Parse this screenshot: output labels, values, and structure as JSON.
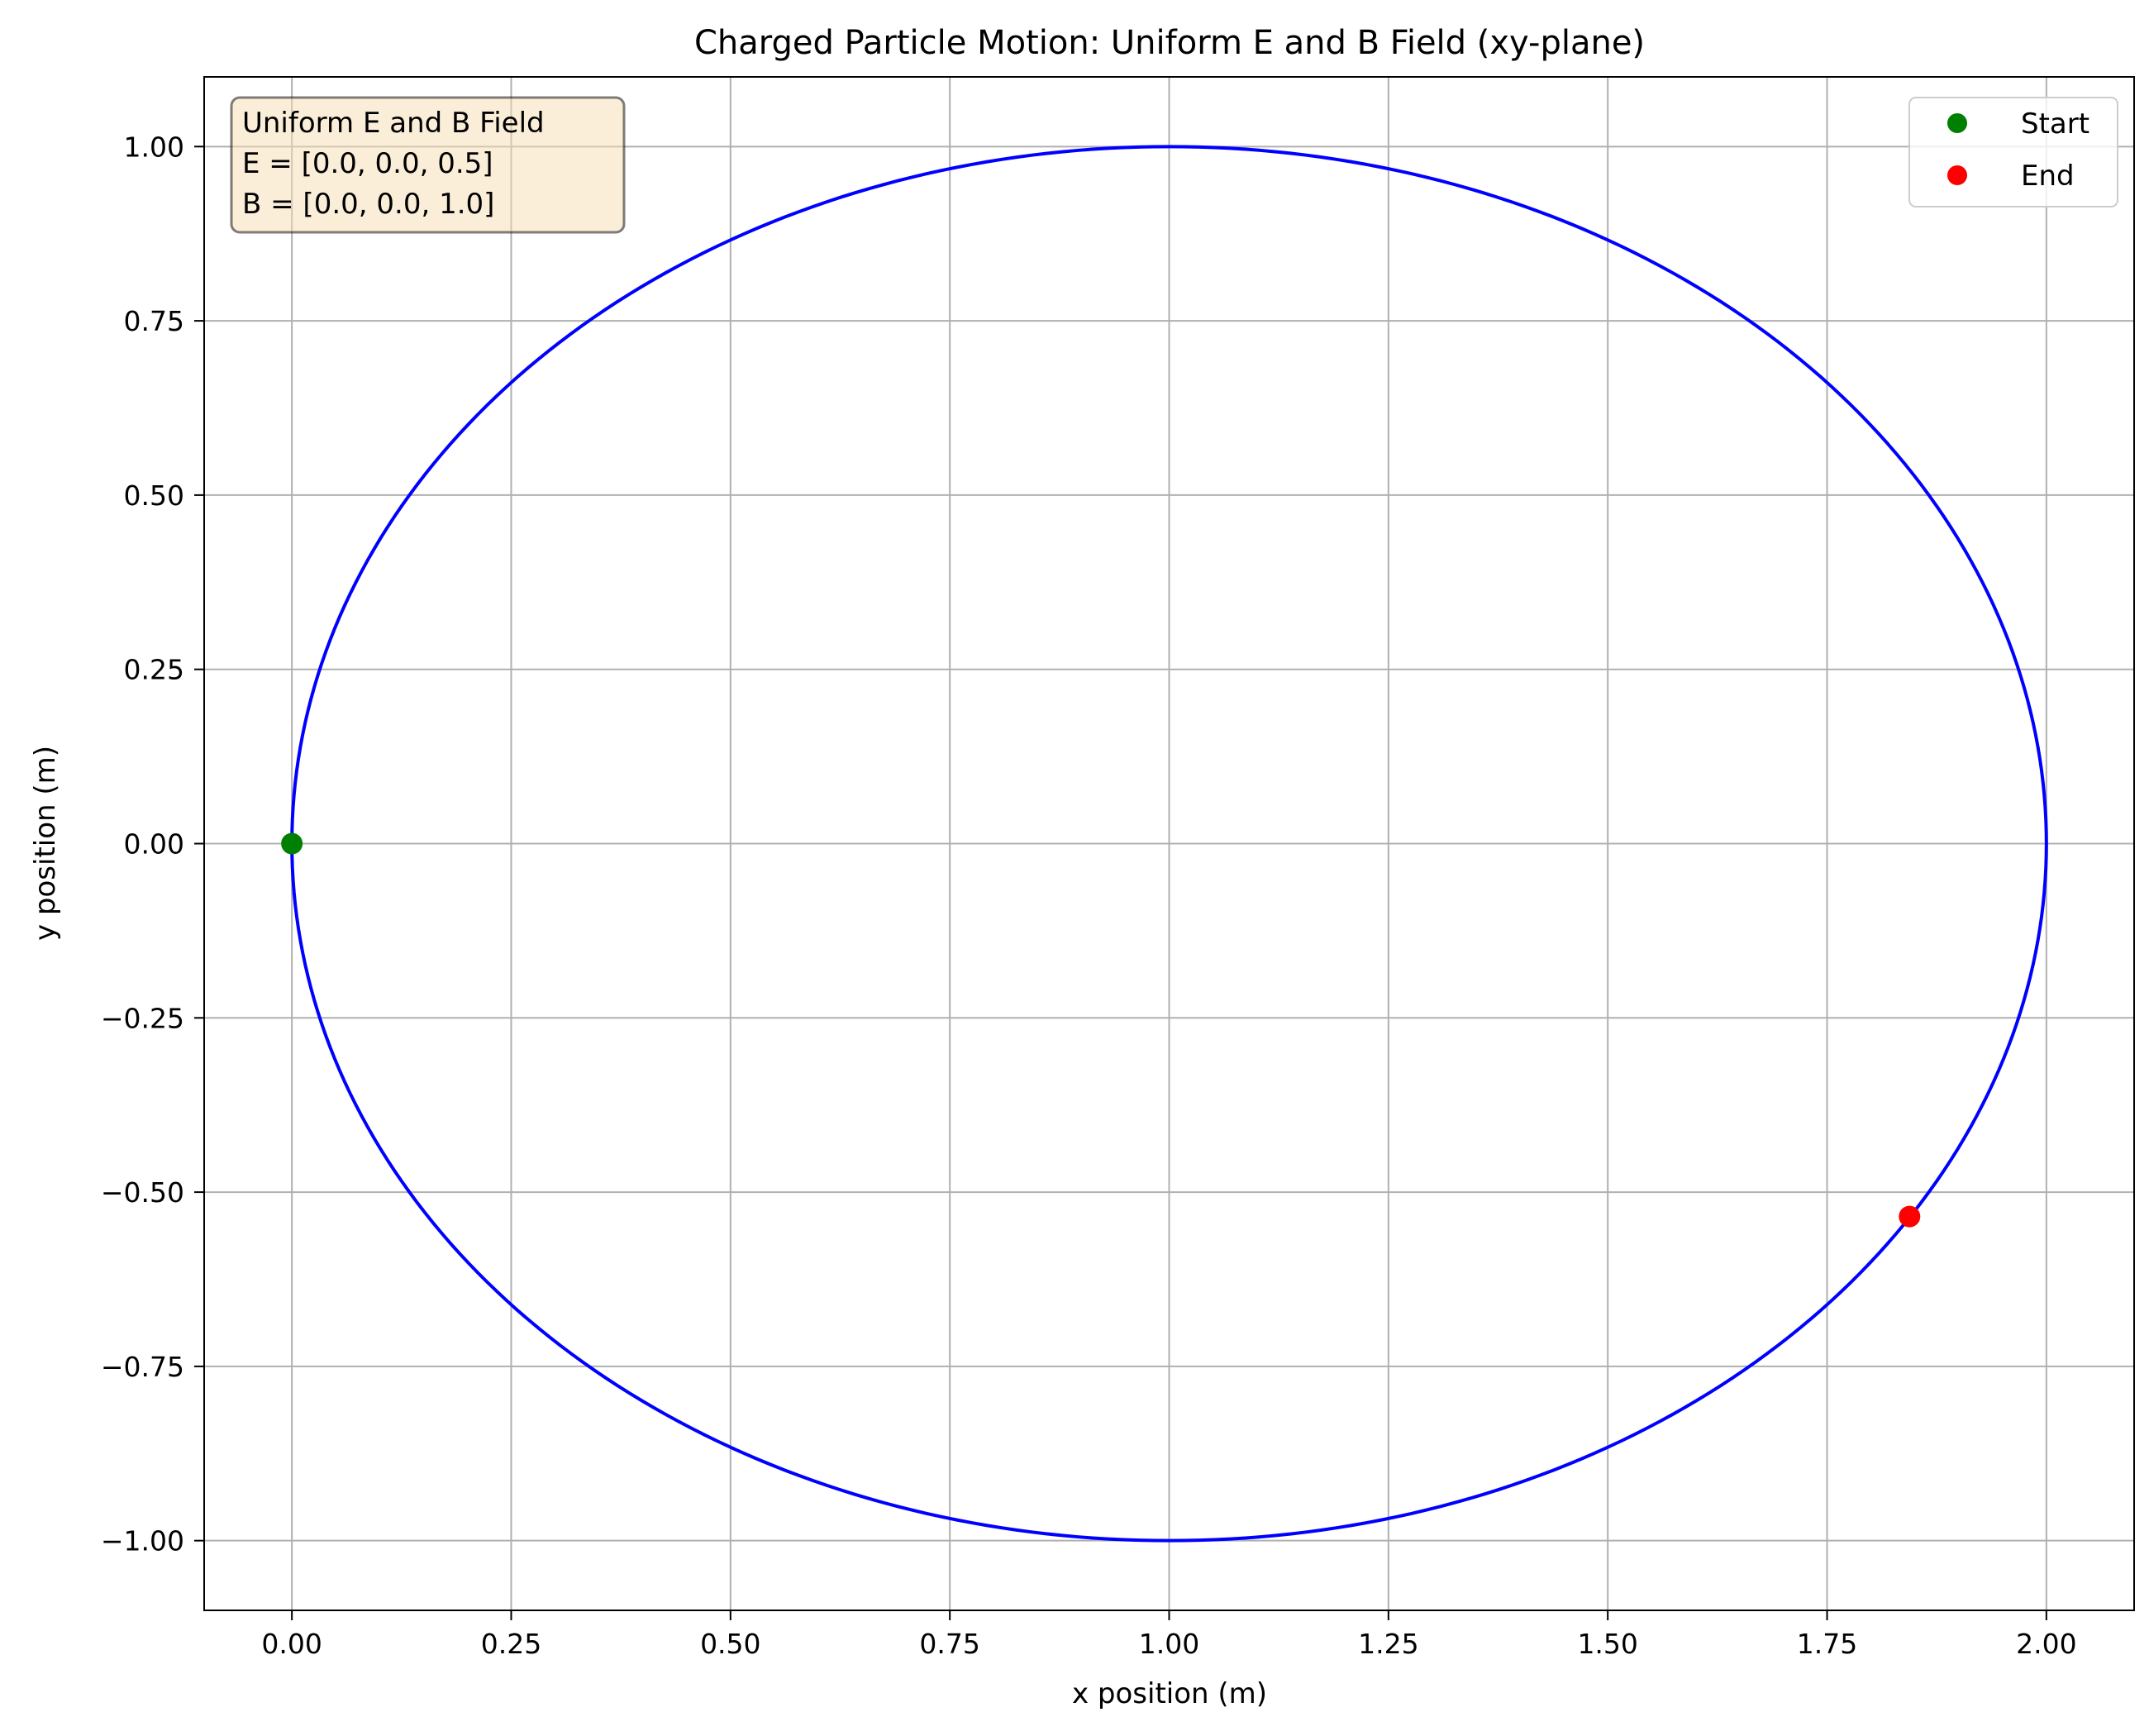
{
  "chart_data": {
    "type": "line",
    "title": "Charged Particle Motion: Uniform E and B Field (xy-plane)",
    "xlabel": "x position (m)",
    "ylabel": "y position (m)",
    "xlim": [
      -0.1,
      2.1
    ],
    "ylim": [
      -1.1,
      1.1
    ],
    "xticks": [
      0.0,
      0.25,
      0.5,
      0.75,
      1.0,
      1.25,
      1.5,
      1.75,
      2.0
    ],
    "xtick_labels": [
      "0.00",
      "0.25",
      "0.50",
      "0.75",
      "1.00",
      "1.25",
      "1.50",
      "1.75",
      "2.00"
    ],
    "yticks": [
      -1.0,
      -0.75,
      -0.5,
      -0.25,
      0.0,
      0.25,
      0.5,
      0.75,
      1.0
    ],
    "ytick_labels": [
      "−1.00",
      "−0.75",
      "−0.50",
      "−0.25",
      "0.00",
      "0.25",
      "0.50",
      "0.75",
      "1.00"
    ],
    "grid": true,
    "series": [
      {
        "kind": "trajectory",
        "color": "#0000ff",
        "center": [
          1.0,
          0.0
        ],
        "radius": 1.0,
        "x": [
          0.0,
          0.0476,
          0.1464,
          0.2929,
          0.5,
          0.75,
          1.0,
          1.25,
          1.5,
          1.7071,
          1.8536,
          1.9524,
          2.0,
          1.9524,
          1.8443,
          1.7071,
          1.5,
          1.25,
          1.0,
          0.75,
          0.5,
          0.2929,
          0.1464,
          0.0476,
          0.0
        ],
        "y": [
          0.0,
          0.3,
          0.5,
          0.7071,
          0.866,
          0.9682,
          1.0,
          0.9682,
          0.866,
          0.7071,
          0.5,
          0.3,
          0.0,
          -0.3,
          -0.535,
          -0.7071,
          -0.866,
          -0.9682,
          -1.0,
          -0.9682,
          -0.866,
          -0.7071,
          -0.5,
          -0.3,
          0.0
        ]
      }
    ],
    "markers": [
      {
        "name": "Start",
        "x": 0.0,
        "y": 0.0,
        "color": "#008000"
      },
      {
        "name": "End",
        "x": 1.844,
        "y": -0.535,
        "color": "#ff0000"
      }
    ],
    "legend": {
      "placement": "top-right",
      "entries": [
        {
          "label": "Start",
          "color": "#008000"
        },
        {
          "label": "End",
          "color": "#ff0000"
        }
      ]
    },
    "info_box": {
      "placement": "top-left",
      "background": "#f5deb3",
      "lines": [
        "Uniform E and B Field",
        "E = [0.0, 0.0, 0.5]",
        "B = [0.0, 0.0, 1.0]"
      ]
    }
  }
}
